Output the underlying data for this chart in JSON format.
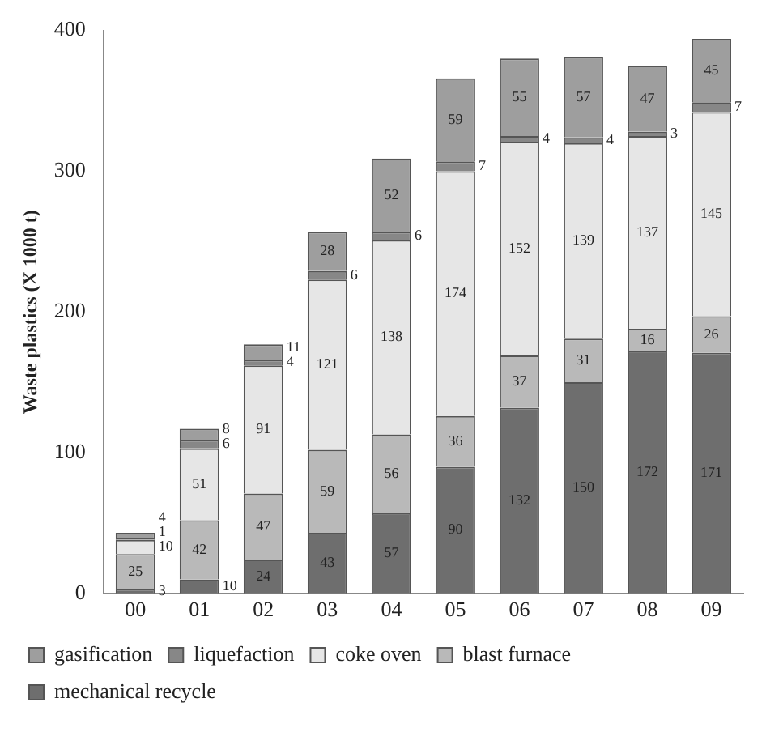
{
  "chart_data": {
    "type": "bar",
    "stacked": true,
    "ylabel": "Waste plastics (X 1000 t)",
    "categories": [
      "00",
      "01",
      "02",
      "03",
      "04",
      "05",
      "06",
      "07",
      "08",
      "09"
    ],
    "ylim": [
      0,
      400
    ],
    "yticks": [
      0,
      100,
      200,
      300,
      400
    ],
    "grid": false,
    "legend": "bottom",
    "data_labels": true,
    "series": [
      {
        "name": "mechanical recycle",
        "color": "#6e6e6e",
        "values": [
          3,
          10,
          24,
          43,
          57,
          90,
          132,
          150,
          172,
          171
        ]
      },
      {
        "name": "blast furnace",
        "color": "#b9b9b9",
        "values": [
          25,
          42,
          47,
          59,
          56,
          36,
          37,
          31,
          16,
          26
        ]
      },
      {
        "name": "coke oven",
        "color": "#e6e6e6",
        "values": [
          10,
          51,
          91,
          121,
          138,
          174,
          152,
          139,
          137,
          145
        ]
      },
      {
        "name": "liquefaction",
        "color": "#878787",
        "values": [
          1,
          6,
          4,
          6,
          6,
          7,
          4,
          4,
          3,
          7
        ]
      },
      {
        "name": "gasification",
        "color": "#9e9e9e",
        "values": [
          4,
          8,
          11,
          28,
          52,
          59,
          55,
          57,
          47,
          45
        ]
      }
    ]
  }
}
